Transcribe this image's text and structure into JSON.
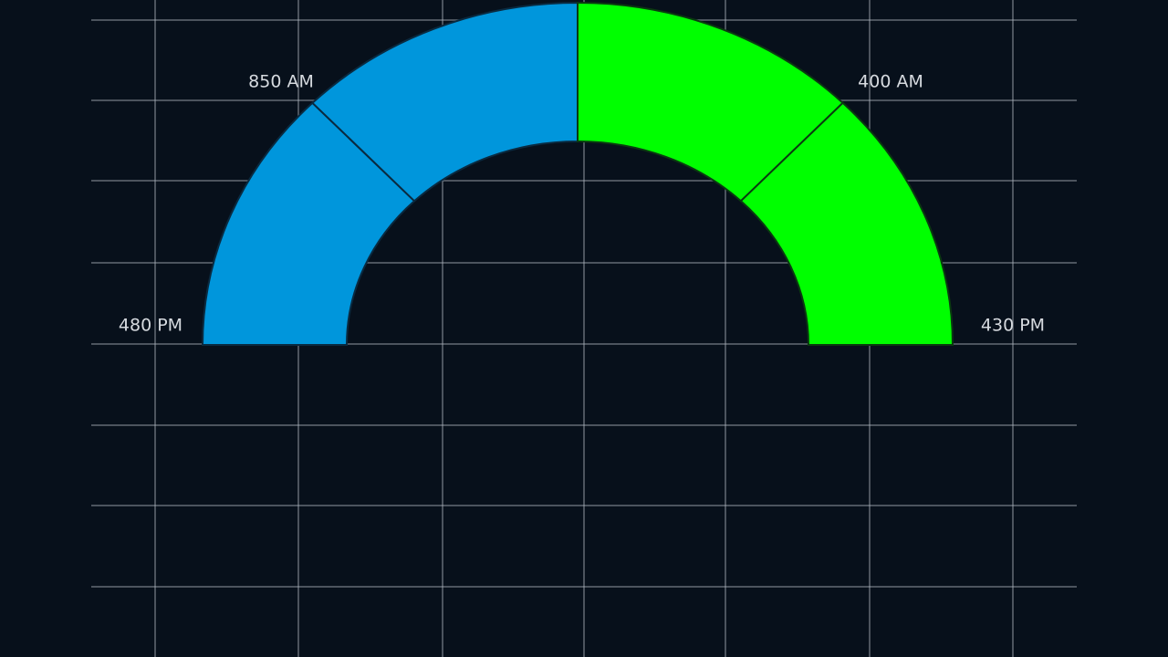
{
  "labels": {
    "top_left": "850 AM",
    "top_right": "400 AM",
    "bottom_left": "480 PM",
    "bottom_right": "430 PM"
  }
}
